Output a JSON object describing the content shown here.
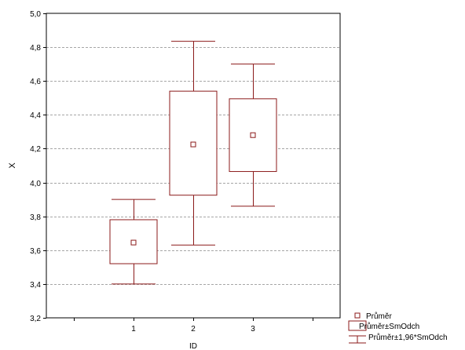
{
  "chart_data": {
    "type": "box",
    "xlabel": "ID",
    "ylabel": "X",
    "categories": [
      "1",
      "2",
      "3"
    ],
    "ylim": [
      3.2,
      5.0
    ],
    "yticks": [
      "3,2",
      "3,4",
      "3,6",
      "3,8",
      "4,0",
      "4,2",
      "4,4",
      "4,6",
      "4,8",
      "5,0"
    ],
    "grid": true,
    "legend_position": "bottom-right",
    "legend": {
      "mean": "Průměr",
      "box": "Průměr±SmOdch",
      "whisker": "Průměr±1,96*SmOdch"
    },
    "series": [
      {
        "category": "1",
        "mean": 3.645,
        "box_low": 3.52,
        "box_high": 3.78,
        "whisker_low": 3.4,
        "whisker_high": 3.9
      },
      {
        "category": "2",
        "mean": 4.225,
        "box_low": 3.925,
        "box_high": 4.54,
        "whisker_low": 3.63,
        "whisker_high": 4.835
      },
      {
        "category": "3",
        "mean": 4.28,
        "box_low": 4.065,
        "box_high": 4.495,
        "whisker_low": 3.86,
        "whisker_high": 4.7
      }
    ],
    "colors": {
      "series": "#8b1a1a",
      "grid": "#a6a6a6",
      "axis": "#000000"
    }
  }
}
